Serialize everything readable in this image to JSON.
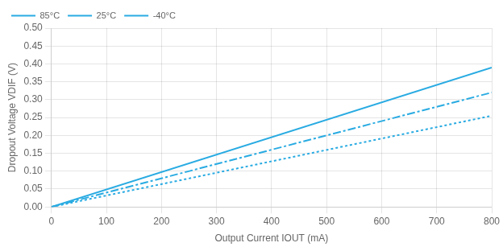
{
  "chart_data": {
    "type": "line",
    "x_label": "Output Current IOUT (mA)",
    "y_label": "Dropout Voltage VDIF (V)",
    "x": [
      0,
      800
    ],
    "series": [
      {
        "name": "85°C",
        "color": "#29ABE2",
        "line_style": "solid",
        "values": [
          0,
          0.39
        ]
      },
      {
        "name": "25°C",
        "color": "#29ABE2",
        "line_style": "dashdot",
        "values": [
          0,
          0.32
        ]
      },
      {
        "name": "-40°C",
        "color": "#29ABE2",
        "line_style": "dotted",
        "values": [
          0,
          0.255
        ]
      }
    ],
    "xlim": [
      0,
      800
    ],
    "ylim": [
      0,
      0.5
    ],
    "xticks": [
      0,
      100,
      200,
      300,
      400,
      500,
      600,
      700,
      800
    ],
    "yticks": [
      {
        "value": 0,
        "label": "0.00"
      },
      0.05,
      {
        "value": 0.1,
        "label": "0.10"
      },
      0.15,
      {
        "value": 0.2,
        "label": "0.20"
      },
      0.25,
      {
        "value": 0.3,
        "label": "0.30"
      },
      0.35,
      {
        "value": 0.4,
        "label": "0.40"
      },
      0.45,
      {
        "value": 0.5,
        "label": "0.50"
      }
    ],
    "grid": true,
    "legend": "upper left"
  }
}
